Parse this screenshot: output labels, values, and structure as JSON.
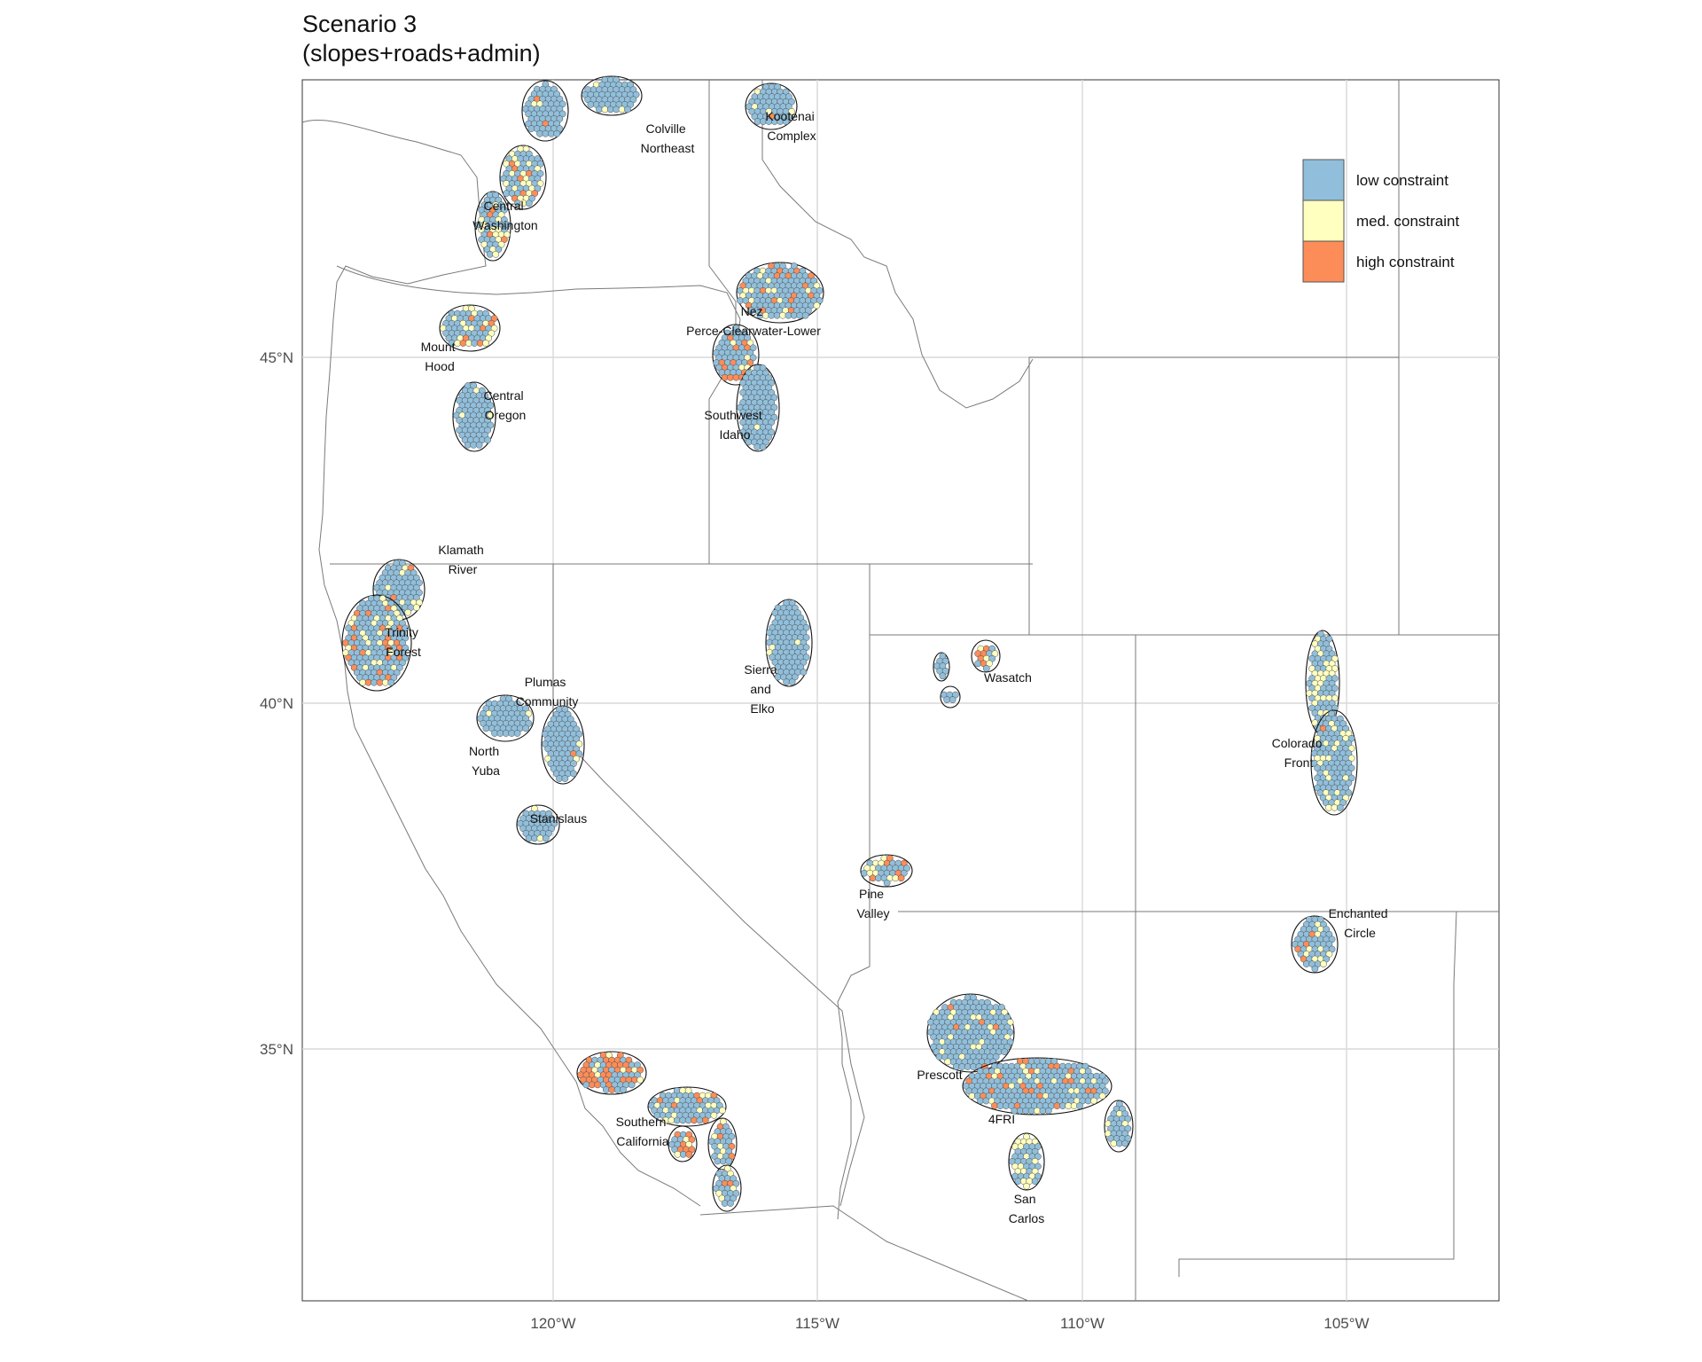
{
  "title": {
    "line1": "Scenario 3",
    "line2": "(slopes+roads+admin)"
  },
  "axes": {
    "x_ticks": [
      "120°W",
      "115°W",
      "110°W",
      "105°W"
    ],
    "y_ticks": [
      "45°N",
      "40°N",
      "35°N"
    ]
  },
  "legend": {
    "placement": "top-right",
    "items": [
      {
        "label": "low constraint",
        "color": "#91bfdb"
      },
      {
        "label": "med. constraint",
        "color": "#ffffbf"
      },
      {
        "label": "high constraint",
        "color": "#fc8d59"
      }
    ]
  },
  "colors": {
    "low": "#91bfdb",
    "med": "#ffffbf",
    "high": "#fc8d59",
    "grid": "#d9d9d9",
    "boundary": "#7a7a7a"
  },
  "regions": [
    {
      "lines": [
        "Colville",
        "Northeast"
      ]
    },
    {
      "lines": [
        "Kootenai",
        "Complex"
      ]
    },
    {
      "lines": [
        "Central",
        "Washington"
      ]
    },
    {
      "lines": [
        "Nez",
        "Perce-Clearwater-Lower"
      ]
    },
    {
      "lines": [
        "Mount",
        "Hood"
      ]
    },
    {
      "lines": [
        "Central",
        "Oregon"
      ]
    },
    {
      "lines": [
        "Southwest",
        "Idaho"
      ]
    },
    {
      "lines": [
        "Klamath",
        "River"
      ]
    },
    {
      "lines": [
        "Trinity",
        "Forest"
      ]
    },
    {
      "lines": [
        "Plumas",
        "Community"
      ]
    },
    {
      "lines": [
        "Sierra",
        "and",
        "Elko"
      ]
    },
    {
      "lines": [
        "Wasatch"
      ]
    },
    {
      "lines": [
        "North",
        "Yuba"
      ]
    },
    {
      "lines": [
        "Colorado",
        "Front"
      ]
    },
    {
      "lines": [
        "Stanislaus"
      ]
    },
    {
      "lines": [
        "Pine",
        "Valley"
      ]
    },
    {
      "lines": [
        "Enchanted",
        "Circle"
      ]
    },
    {
      "lines": [
        "Prescott"
      ]
    },
    {
      "lines": [
        "4FRI"
      ]
    },
    {
      "lines": [
        "Southern",
        "California"
      ]
    },
    {
      "lines": [
        "San",
        "Carlos"
      ]
    }
  ]
}
